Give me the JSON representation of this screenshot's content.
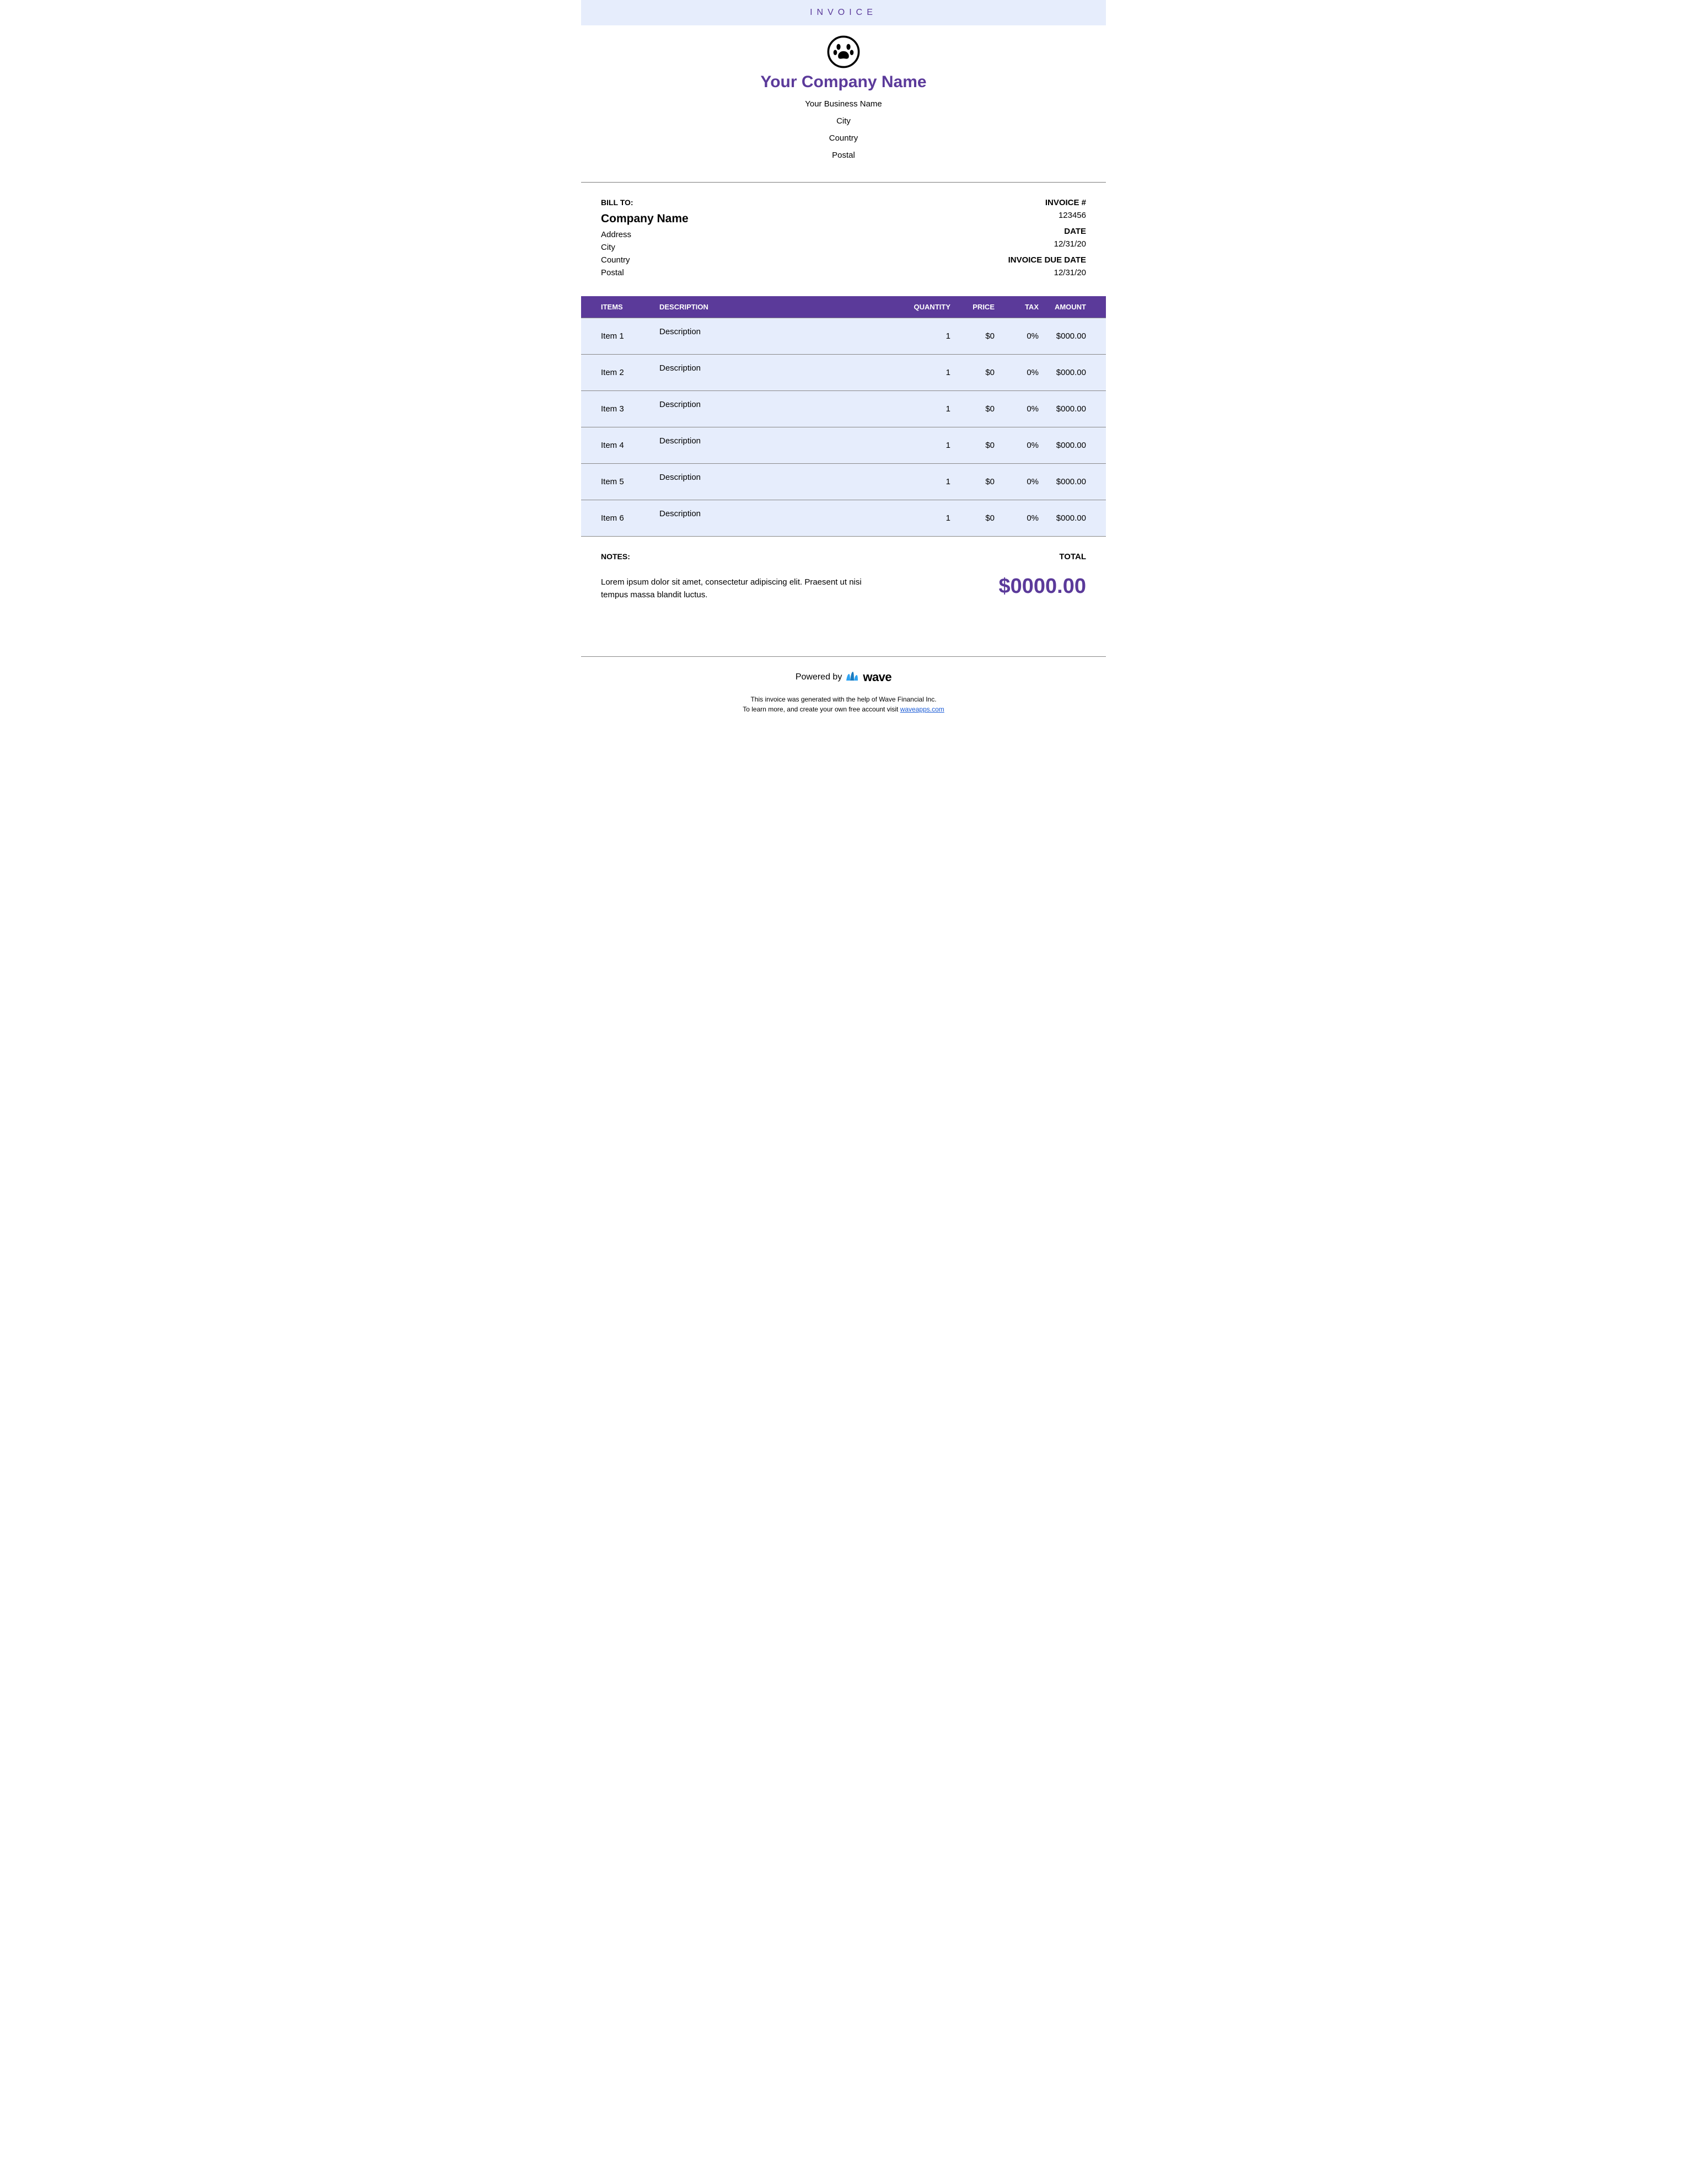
{
  "colors": {
    "accent": "#5b3a9a",
    "band_bg": "#e6edfc",
    "row_bg": "#e6edfc",
    "divider": "#888888",
    "link": "#1a5bd6",
    "wave_icon": "#2ea3f2"
  },
  "banner": {
    "title": "INVOICE"
  },
  "header": {
    "company_name": "Your Company Name",
    "business_name": "Your Business Name",
    "city": "City",
    "country": "Country",
    "postal": "Postal",
    "logo": "paw-icon"
  },
  "bill_to": {
    "label": "BILL TO:",
    "company": "Company Name",
    "address": "Address",
    "city": "City",
    "country": "Country",
    "postal": "Postal"
  },
  "invoice_meta": {
    "invoice_number_label": "INVOICE #",
    "invoice_number": "123456",
    "date_label": "DATE",
    "date": "12/31/20",
    "due_date_label": "INVOICE DUE DATE",
    "due_date": "12/31/20"
  },
  "table": {
    "headers": {
      "items": "ITEMS",
      "description": "DESCRIPTION",
      "quantity": "QUANTITY",
      "price": "PRICE",
      "tax": "TAX",
      "amount": "AMOUNT"
    },
    "rows": [
      {
        "item": "Item 1",
        "description": "Description",
        "quantity": "1",
        "price": "$0",
        "tax": "0%",
        "amount": "$000.00"
      },
      {
        "item": "Item 2",
        "description": "Description",
        "quantity": "1",
        "price": "$0",
        "tax": "0%",
        "amount": "$000.00"
      },
      {
        "item": "Item 3",
        "description": "Description",
        "quantity": "1",
        "price": "$0",
        "tax": "0%",
        "amount": "$000.00"
      },
      {
        "item": "Item 4",
        "description": "Description",
        "quantity": "1",
        "price": "$0",
        "tax": "0%",
        "amount": "$000.00"
      },
      {
        "item": "Item 5",
        "description": "Description",
        "quantity": "1",
        "price": "$0",
        "tax": "0%",
        "amount": "$000.00"
      },
      {
        "item": "Item 6",
        "description": "Description",
        "quantity": "1",
        "price": "$0",
        "tax": "0%",
        "amount": "$000.00"
      }
    ]
  },
  "notes": {
    "label": "NOTES:",
    "text": "Lorem ipsum dolor sit amet, consectetur adipiscing elit. Praesent ut nisi tempus massa blandit luctus."
  },
  "total": {
    "label": "TOTAL",
    "amount": "$0000.00"
  },
  "footer": {
    "powered_by": "Powered by",
    "brand": "wave",
    "line1": "This invoice was generated with the help of Wave Financial Inc.",
    "line2_prefix": "To learn more, and create your own free account visit ",
    "link_text": "waveapps.com"
  }
}
